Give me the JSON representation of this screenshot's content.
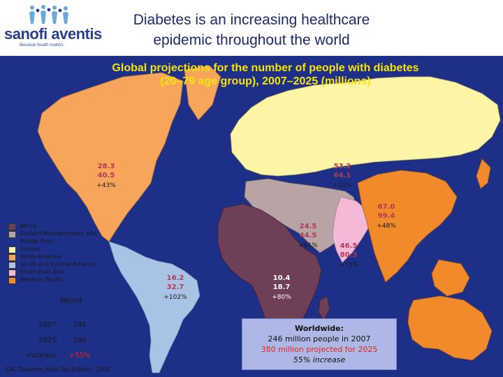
{
  "header": {
    "logo_text": "sanofi aventis",
    "logo_tagline": "Because health matters",
    "title_line1": "Diabetes is an increasing healthcare",
    "title_line2": "epidemic throughout the world"
  },
  "map": {
    "title_line1": "Global projections for the number of people with diabetes",
    "title_line2": "(20–79 age group), 2007–2025 (millions)",
    "ocean_color": "#1d2f86",
    "regions": [
      {
        "key": "north_america",
        "label": "North America",
        "value_2007": "28.3",
        "value_2025": "40.5",
        "increase": "+43%",
        "color": "#f7a55a"
      },
      {
        "key": "europe",
        "label": "Europe",
        "value_2007": "53.2",
        "value_2025": "64.1",
        "increase": "+21%",
        "color": "#fdf5a6"
      },
      {
        "key": "western_pacific",
        "label": "Western Pacific",
        "value_2007": "67.0",
        "value_2025": "99.4",
        "increase": "+48%",
        "color": "#f08a2a"
      },
      {
        "key": "eastern_mediterranean",
        "label": "Eastern Mediterranean and Middle East",
        "value_2007": "24.5",
        "value_2025": "44.5",
        "increase": "+81%",
        "color": "#b8a4a4"
      },
      {
        "key": "south_east_asia",
        "label": "South-East Asia",
        "value_2007": "46.5",
        "value_2025": "80.3",
        "increase": "+73%",
        "color": "#f3b9d6"
      },
      {
        "key": "south_central_america",
        "label": "South and Central America",
        "value_2007": "16.2",
        "value_2025": "32.7",
        "increase": "+102%",
        "color": "#a9c3e6"
      },
      {
        "key": "africa",
        "label": "Africa",
        "value_2007": "10.4",
        "value_2025": "18.7",
        "increase": "+80%",
        "color": "#6e3f56"
      }
    ]
  },
  "legend": {
    "items": [
      {
        "label": "Africa",
        "color": "#6e3f56"
      },
      {
        "label": "Eastern Mediterranean and Middle East",
        "color": "#b8a4a4"
      },
      {
        "label": "Europe",
        "color": "#fdf5a6"
      },
      {
        "label": "North America",
        "color": "#f7a55a"
      },
      {
        "label": "South and Central America",
        "color": "#a9c3e6"
      },
      {
        "label": "South-East Asia",
        "color": "#f3b9d6"
      },
      {
        "label": "Western Pacific",
        "color": "#f08a2a"
      }
    ]
  },
  "world": {
    "heading": "World",
    "rows": [
      {
        "label": "2007:",
        "value": "246"
      },
      {
        "label": "2025:",
        "value": "380"
      },
      {
        "label": "Increase:",
        "value": "+55%"
      }
    ]
  },
  "worldwide": {
    "title": "Worldwide:",
    "line1": "246 million people in 2007",
    "line2": "380 million projected for 2025",
    "line3": "55% increase"
  },
  "source": "IDF. Diabetes Atlas 3rd Edition - 2006"
}
